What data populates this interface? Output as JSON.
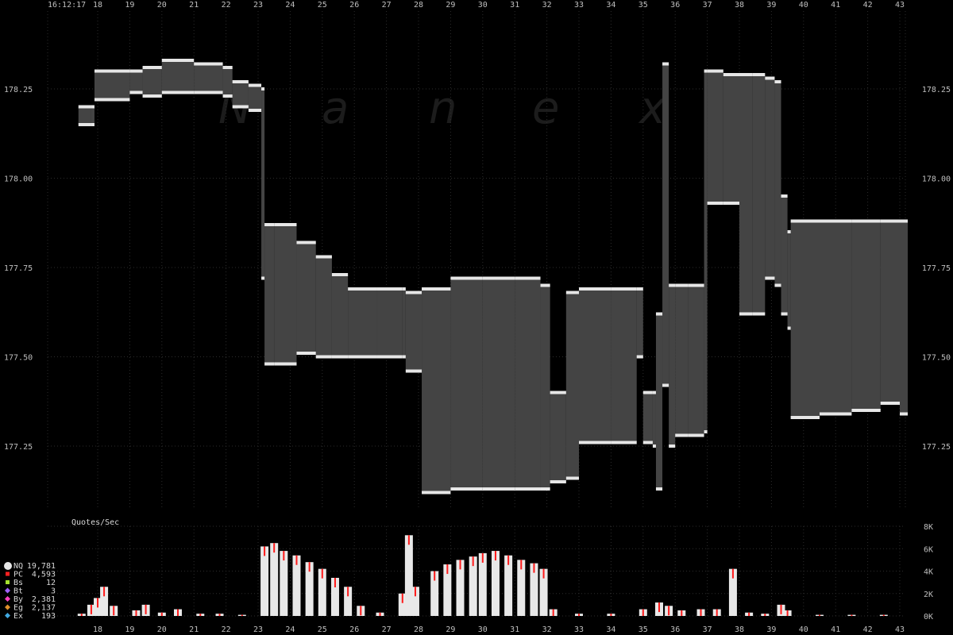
{
  "timestamp": "16:12:17",
  "watermark": [
    "N",
    "a",
    "n",
    "e",
    "x"
  ],
  "colors": {
    "background": "#000000",
    "grid": "#2c2c2c",
    "spread": "#444444",
    "bid_ask_marks": "#e6e6e6",
    "highlight": "#ff1a1a",
    "volume_fill": "#e8e8e8"
  },
  "chart_data": [
    {
      "type": "area",
      "x_tick_labels": [
        "18",
        "19",
        "20",
        "21",
        "22",
        "23",
        "24",
        "25",
        "26",
        "27",
        "28",
        "29",
        "30",
        "31",
        "32",
        "33",
        "34",
        "35",
        "36",
        "37",
        "38",
        "39",
        "40",
        "41",
        "42",
        "43"
      ],
      "y_ticks": [
        177.25,
        177.5,
        177.75,
        178.0,
        178.25
      ],
      "y_tick_labels": [
        "177.25",
        "177.50",
        "177.75",
        "178.00",
        "178.25"
      ],
      "ylim": [
        177.07,
        178.42
      ],
      "xlim": [
        17.05,
        43.3
      ],
      "grid": true,
      "series": [
        {
          "name": "Bid",
          "x": [
            17.4,
            17.8,
            17.9,
            19.0,
            19.4,
            20.0,
            21.0,
            21.9,
            22.2,
            22.7,
            23.1,
            23.2,
            23.5,
            24.2,
            24.8,
            25.3,
            25.8,
            26.7,
            27.5,
            27.6,
            28.1,
            29.0,
            30.0,
            31.0,
            31.8,
            32.1,
            32.6,
            33.0,
            34.0,
            34.8,
            35.0,
            35.3,
            35.4,
            35.6,
            35.8,
            36.0,
            36.4,
            36.9,
            37.0,
            37.5,
            38.0,
            38.4,
            38.8,
            39.1,
            39.3,
            39.5,
            39.6,
            40.5,
            41.5,
            42.4,
            43.0
          ],
          "values": [
            178.15,
            178.15,
            178.22,
            178.24,
            178.23,
            178.24,
            178.24,
            178.23,
            178.2,
            178.19,
            177.72,
            177.48,
            177.48,
            177.51,
            177.5,
            177.5,
            177.5,
            177.5,
            177.5,
            177.46,
            177.12,
            177.13,
            177.13,
            177.13,
            177.13,
            177.15,
            177.16,
            177.26,
            177.26,
            177.5,
            177.26,
            177.25,
            177.13,
            177.42,
            177.25,
            177.28,
            177.28,
            177.29,
            177.93,
            177.93,
            177.62,
            177.62,
            177.72,
            177.7,
            177.62,
            177.58,
            177.33,
            177.34,
            177.35,
            177.37,
            177.34
          ]
        },
        {
          "name": "Ask",
          "x": [
            17.4,
            17.8,
            17.9,
            19.0,
            19.4,
            20.0,
            21.0,
            21.9,
            22.2,
            22.7,
            23.1,
            23.2,
            23.5,
            24.2,
            24.8,
            25.3,
            25.8,
            26.7,
            27.5,
            27.6,
            28.1,
            29.0,
            30.0,
            31.0,
            31.8,
            32.1,
            32.6,
            33.0,
            34.0,
            34.8,
            35.0,
            35.3,
            35.4,
            35.6,
            35.8,
            36.0,
            36.4,
            36.9,
            37.0,
            37.5,
            38.0,
            38.4,
            38.8,
            39.1,
            39.3,
            39.5,
            39.6,
            40.5,
            41.5,
            42.4,
            43.0
          ],
          "values": [
            178.2,
            178.2,
            178.3,
            178.3,
            178.31,
            178.33,
            178.32,
            178.31,
            178.27,
            178.26,
            178.25,
            177.87,
            177.87,
            177.82,
            177.78,
            177.73,
            177.69,
            177.69,
            177.69,
            177.68,
            177.69,
            177.72,
            177.72,
            177.72,
            177.7,
            177.4,
            177.68,
            177.69,
            177.69,
            177.69,
            177.4,
            177.4,
            177.62,
            178.32,
            177.7,
            177.7,
            177.7,
            178.3,
            178.3,
            178.29,
            178.29,
            178.29,
            178.28,
            178.27,
            177.95,
            177.85,
            177.88,
            177.88,
            177.88,
            177.88,
            177.88
          ]
        }
      ]
    },
    {
      "type": "bar",
      "title": "Quotes/Sec",
      "y_ticks": [
        0,
        2000,
        4000,
        6000,
        8000
      ],
      "y_tick_labels": [
        "0K",
        "2K",
        "4K",
        "6K",
        "8K"
      ],
      "ylim": [
        0,
        8000
      ],
      "x": [
        17.5,
        17.8,
        18.0,
        18.2,
        18.5,
        19.2,
        19.5,
        20.0,
        20.5,
        21.2,
        21.8,
        22.5,
        23.2,
        23.5,
        23.8,
        24.2,
        24.6,
        25.0,
        25.4,
        25.8,
        26.2,
        26.8,
        27.5,
        27.7,
        27.9,
        28.5,
        28.9,
        29.3,
        29.7,
        30.0,
        30.4,
        30.8,
        31.2,
        31.6,
        31.9,
        32.2,
        33.0,
        34.0,
        35.0,
        35.5,
        35.8,
        36.2,
        36.8,
        37.3,
        37.8,
        38.3,
        38.8,
        39.3,
        39.5,
        40.5,
        41.5,
        42.5
      ],
      "values": [
        200,
        1000,
        1600,
        2600,
        900,
        500,
        1000,
        300,
        600,
        200,
        200,
        100,
        6200,
        6500,
        5800,
        5400,
        4800,
        4200,
        3400,
        2600,
        900,
        300,
        2000,
        7200,
        2600,
        4000,
        4600,
        5000,
        5300,
        5600,
        5800,
        5400,
        5000,
        4700,
        4200,
        600,
        200,
        200,
        600,
        1200,
        900,
        500,
        600,
        600,
        4200,
        300,
        200,
        1000,
        500,
        100,
        100,
        100
      ]
    }
  ],
  "legend": [
    {
      "code": "NQ",
      "count": "19,781",
      "color": "#e6e6e6",
      "marker": "circle"
    },
    {
      "code": "PC",
      "count": "4,593",
      "color": "#ff2020",
      "marker": "square"
    },
    {
      "code": "Bs",
      "count": "12",
      "color": "#a6e22e",
      "marker": "square"
    },
    {
      "code": "Bt",
      "count": "3",
      "color": "#a060ff",
      "marker": "diamond"
    },
    {
      "code": "By",
      "count": "2,381",
      "color": "#ff40c0",
      "marker": "diamond"
    },
    {
      "code": "Eg",
      "count": "2,137",
      "color": "#e0902a",
      "marker": "diamond"
    },
    {
      "code": "Ex",
      "count": "193",
      "color": "#40a8e0",
      "marker": "diamond"
    }
  ]
}
